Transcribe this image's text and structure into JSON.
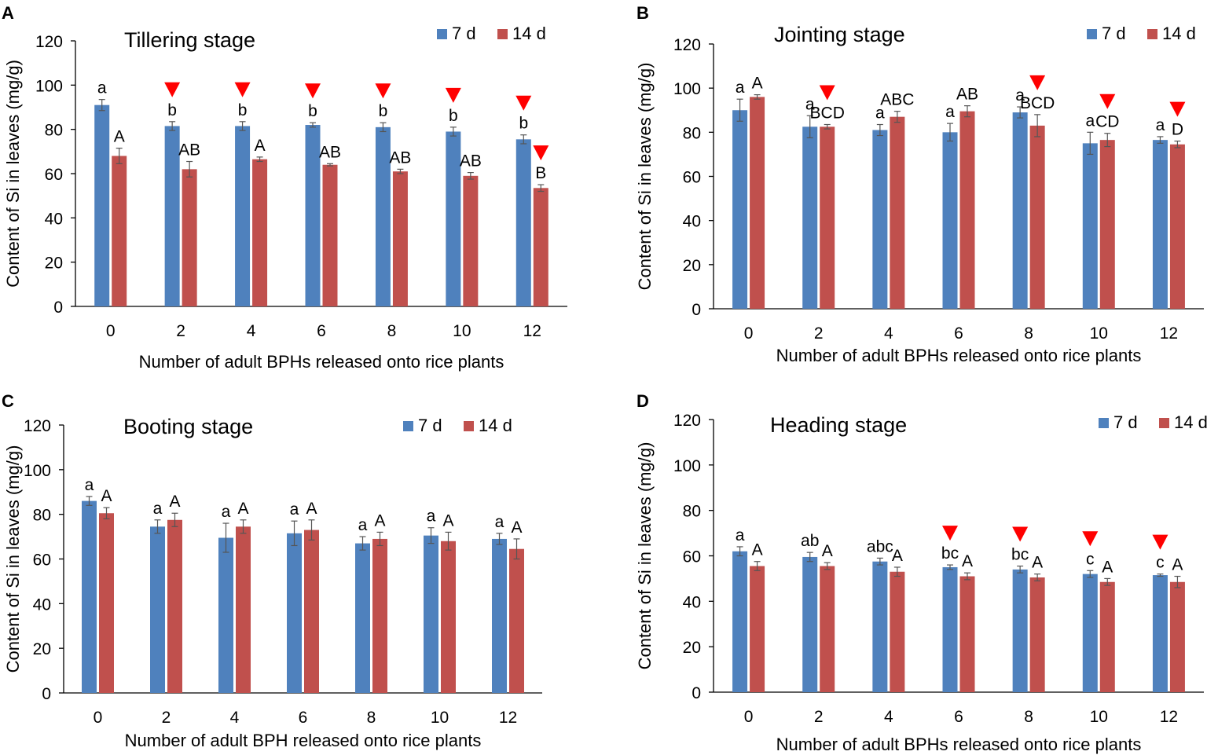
{
  "colors": {
    "series_7d": "#4F81BD",
    "series_14d": "#C0504D",
    "marker": "#FF0000",
    "axis": "#000000"
  },
  "chart_data": [
    {
      "panel": "A",
      "type": "bar",
      "title": "Tillering stage",
      "xlabel": "Number of adult BPHs released onto rice plants",
      "ylabel": "Content of Si in leaves (mg/g)",
      "ylim": [
        0,
        120
      ],
      "yticks": [
        "0",
        "20",
        "40",
        "60",
        "80",
        "100",
        "120"
      ],
      "categories": [
        "0",
        "2",
        "4",
        "6",
        "8",
        "10",
        "12"
      ],
      "legend": [
        "7 d",
        "14 d"
      ],
      "series": [
        {
          "name": "7 d",
          "values": [
            91,
            81.5,
            81.5,
            82,
            81,
            79,
            75.5
          ],
          "errors": [
            2.5,
            2,
            2,
            1,
            2,
            2,
            2
          ],
          "labels": [
            "a",
            "b",
            "b",
            "b",
            "b",
            "b",
            "b"
          ],
          "markers": [
            false,
            true,
            true,
            true,
            true,
            true,
            true
          ]
        },
        {
          "name": "14 d",
          "values": [
            68,
            62,
            66.5,
            64,
            61,
            59,
            53.5
          ],
          "errors": [
            3.5,
            3.5,
            1,
            0.5,
            1,
            1.5,
            1.5
          ],
          "labels": [
            "A",
            "AB",
            "A",
            "AB",
            "AB",
            "AB",
            "B"
          ],
          "markers": [
            false,
            false,
            false,
            false,
            false,
            false,
            true
          ]
        }
      ]
    },
    {
      "panel": "B",
      "type": "bar",
      "title": "Jointing stage",
      "xlabel": "Number of adult BPHs released onto rice plants",
      "ylabel": "Content of Si in leaves (mg/g)",
      "ylim": [
        0,
        120
      ],
      "yticks": [
        "0",
        "20",
        "40",
        "60",
        "80",
        "100",
        "120"
      ],
      "categories": [
        "0",
        "2",
        "4",
        "6",
        "8",
        "10",
        "12"
      ],
      "legend": [
        "7 d",
        "14 d"
      ],
      "series": [
        {
          "name": "7 d",
          "values": [
            90,
            82.5,
            81,
            80,
            89,
            75,
            76.5
          ],
          "errors": [
            5,
            5,
            2.5,
            4,
            2.5,
            5,
            1.5
          ],
          "labels": [
            "a",
            "a",
            "a",
            "a",
            "a",
            "a",
            "a"
          ],
          "markers": [
            false,
            false,
            false,
            false,
            false,
            false,
            false
          ]
        },
        {
          "name": "14 d",
          "values": [
            96,
            82.5,
            87,
            89.5,
            83,
            76.5,
            74.5
          ],
          "errors": [
            1,
            1,
            2.5,
            2.5,
            5,
            3,
            1.5
          ],
          "labels": [
            "A",
            "BCD",
            "ABC",
            "AB",
            "BCD",
            "CD",
            "D"
          ],
          "markers": [
            false,
            true,
            false,
            false,
            true,
            true,
            true
          ]
        }
      ]
    },
    {
      "panel": "C",
      "type": "bar",
      "title": "Booting stage",
      "xlabel": "Number of adult BPH released onto rice plants",
      "ylabel": "Content of Si in leaves (mg/g)",
      "ylim": [
        0,
        120
      ],
      "yticks": [
        "0",
        "20",
        "40",
        "60",
        "80",
        "100",
        "120"
      ],
      "categories": [
        "0",
        "2",
        "4",
        "6",
        "8",
        "10",
        "12"
      ],
      "legend": [
        "7 d",
        "14 d"
      ],
      "series": [
        {
          "name": "7 d",
          "values": [
            86,
            74.5,
            69.5,
            71.5,
            67,
            70.5,
            69
          ],
          "errors": [
            2,
            3,
            6.5,
            5.5,
            3,
            3.5,
            2.5
          ],
          "labels": [
            "a",
            "a",
            "a",
            "a",
            "a",
            "a",
            "a"
          ],
          "markers": [
            false,
            false,
            false,
            false,
            false,
            false,
            false
          ]
        },
        {
          "name": "14 d",
          "values": [
            80.5,
            77.5,
            74.5,
            73,
            69,
            68,
            64.5
          ],
          "errors": [
            2.5,
            3,
            3,
            4.5,
            3,
            4,
            4.5
          ],
          "labels": [
            "A",
            "A",
            "A",
            "A",
            "A",
            "A",
            "A"
          ],
          "markers": [
            false,
            false,
            false,
            false,
            false,
            false,
            false
          ]
        }
      ]
    },
    {
      "panel": "D",
      "type": "bar",
      "title": "Heading stage",
      "xlabel": "Number of adult BPHs released onto rice plants",
      "ylabel": "Content of Si in leaves (mg/g)",
      "ylim": [
        0,
        120
      ],
      "yticks": [
        "0",
        "20",
        "40",
        "60",
        "80",
        "100",
        "120"
      ],
      "categories": [
        "0",
        "2",
        "4",
        "6",
        "8",
        "10",
        "12"
      ],
      "legend": [
        "7 d",
        "14 d"
      ],
      "series": [
        {
          "name": "7 d",
          "values": [
            62,
            59.5,
            57.5,
            55,
            54,
            52,
            51.5
          ],
          "errors": [
            2,
            2,
            1.5,
            1,
            1.5,
            1.5,
            0.5
          ],
          "labels": [
            "a",
            "ab",
            "abc",
            "bc",
            "bc",
            "c",
            "c"
          ],
          "markers": [
            false,
            false,
            false,
            true,
            true,
            true,
            true
          ]
        },
        {
          "name": "14 d",
          "values": [
            55.5,
            55.5,
            53,
            51,
            50.5,
            48.5,
            48.5
          ],
          "errors": [
            2,
            1.5,
            2,
            1.5,
            1.5,
            1.5,
            2.5
          ],
          "labels": [
            "A",
            "A",
            "A",
            "A",
            "A",
            "A",
            "A"
          ],
          "markers": [
            false,
            false,
            false,
            false,
            false,
            false,
            false
          ]
        }
      ]
    }
  ]
}
